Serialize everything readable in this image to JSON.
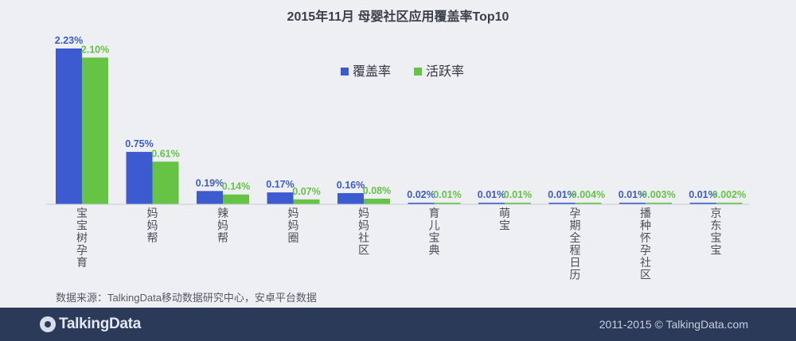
{
  "chart_data": {
    "type": "bar",
    "title": "2015年11月  母婴社区应用覆盖率Top10",
    "categories": [
      "宝宝树孕育",
      "妈妈帮",
      "辣妈帮",
      "妈妈圈",
      "妈妈社区",
      "育儿宝典",
      "萌宝",
      "孕期全程日历",
      "播种怀孕社区",
      "京东宝宝"
    ],
    "series": [
      {
        "name": "覆盖率",
        "color": "#3c5bd0",
        "values": [
          2.23,
          0.75,
          0.19,
          0.17,
          0.16,
          0.02,
          0.01,
          0.01,
          0.01,
          0.01
        ],
        "labels": [
          "2.23%",
          "0.75%",
          "0.19%",
          "0.17%",
          "0.16%",
          "0.02%",
          "0.01%",
          "0.01%",
          "0.01%",
          "0.01%"
        ]
      },
      {
        "name": "活跃率",
        "color": "#66c444",
        "values": [
          2.1,
          0.61,
          0.14,
          0.07,
          0.08,
          0.01,
          0.01,
          0.004,
          0.003,
          0.002
        ],
        "labels": [
          "2.10%",
          "0.61%",
          "0.14%",
          "0.07%",
          "0.08%",
          "0.01%",
          "0.01%",
          "0.004%",
          "0.003%",
          "0.002%"
        ]
      }
    ],
    "ylim": [
      0,
      2.23
    ],
    "legend_position": "top-center",
    "grid": false
  },
  "source_note": "数据来源：TalkingData移动数据研究中心，安卓平台数据",
  "footer": {
    "brand": "TalkingData",
    "copyright": "2011-2015 © TalkingData.com",
    "background_color": "#2c3a59"
  }
}
